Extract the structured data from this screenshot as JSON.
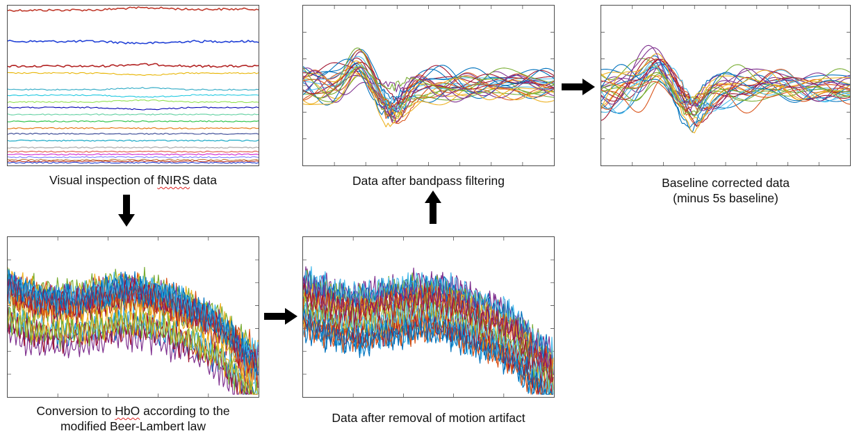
{
  "colors": {
    "matlab": [
      "#0072BD",
      "#D95319",
      "#EDB120",
      "#7E2F8E",
      "#77AC30",
      "#4DBEEE",
      "#A2142F"
    ],
    "inspection": [
      "#c0392b",
      "#1f3fd6",
      "#b22222",
      "#e8b400",
      "#2aa8c4",
      "#1ec8e0",
      "#90e050",
      "#0000b0",
      "#60d0a0",
      "#20c040",
      "#e07000",
      "#304090",
      "#00a0c0",
      "#a0a0a0",
      "#e05040",
      "#d020d0",
      "#8080ff",
      "#c08040"
    ],
    "arrow": "#000000"
  },
  "steps": {
    "inspection": {
      "caption_before": "Visual inspection of ",
      "caption_flag": "fNIRS",
      "caption_after": " data"
    },
    "conversion": {
      "caption_line1_before": "Conversion to ",
      "caption_line1_flag": "HbO",
      "caption_line1_after": " according to the",
      "caption_line2": "modified Beer-Lambert law"
    },
    "motion": {
      "caption": "Data after removal of motion artifact"
    },
    "bandpass": {
      "caption": "Data after bandpass filtering"
    },
    "baseline": {
      "caption_line1": "Baseline corrected data",
      "caption_line2": "(minus 5s baseline)"
    }
  },
  "flow": [
    {
      "from": "inspection",
      "to": "conversion",
      "direction": "down"
    },
    {
      "from": "conversion",
      "to": "motion",
      "direction": "right"
    },
    {
      "from": "motion",
      "to": "bandpass",
      "direction": "up"
    },
    {
      "from": "bandpass",
      "to": "baseline",
      "direction": "right"
    }
  ]
}
